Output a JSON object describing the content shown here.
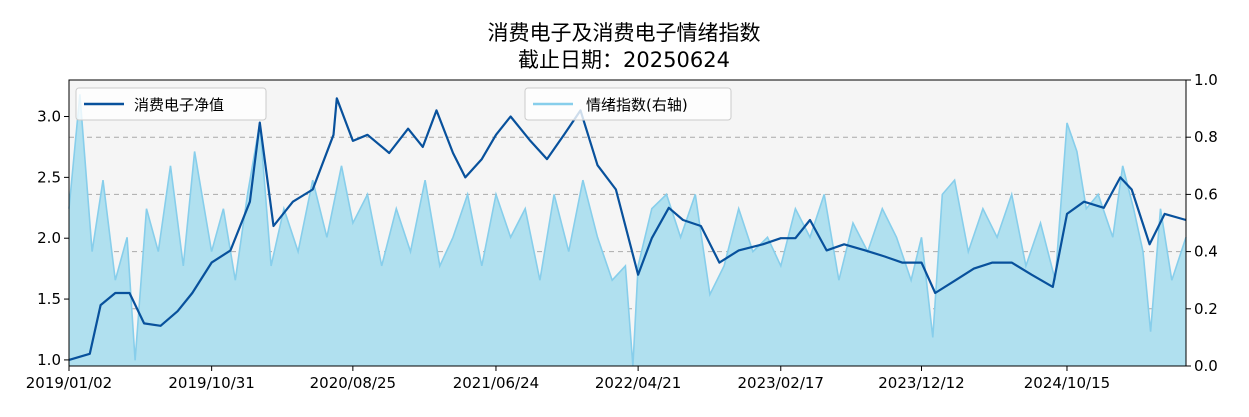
{
  "chart_data": {
    "type": "line",
    "title": "消费电子及消费电子情绪指数",
    "subtitle": "截止日期：20250624",
    "x_tick_labels": [
      "2019/01/02",
      "2019/10/31",
      "2020/08/25",
      "2021/06/24",
      "2022/04/21",
      "2023/02/17",
      "2023/12/12",
      "2024/10/15"
    ],
    "xlabel": "",
    "ylabel_left": "",
    "ylabel_right": "",
    "ylim_left": [
      0.95,
      3.3
    ],
    "ylim_right": [
      0.0,
      1.0
    ],
    "yticks_left": [
      "1.0",
      "1.5",
      "2.0",
      "2.5",
      "3.0"
    ],
    "yticks_right": [
      "0.0",
      "0.2",
      "0.4",
      "0.6",
      "0.8",
      "1.0"
    ],
    "grid": "horizontal dashed at right-axis ticks",
    "legend_left_placement": "top-left",
    "legend_right_placement": "top-center",
    "series": [
      {
        "name": "消费电子净值",
        "axis": "left",
        "color": "#08519c",
        "points": [
          [
            "2019/01/02",
            1.0
          ],
          [
            "2019/02/15",
            1.05
          ],
          [
            "2019/03/10",
            1.45
          ],
          [
            "2019/04/10",
            1.55
          ],
          [
            "2019/05/10",
            1.55
          ],
          [
            "2019/06/10",
            1.3
          ],
          [
            "2019/07/15",
            1.28
          ],
          [
            "2019/08/20",
            1.4
          ],
          [
            "2019/09/20",
            1.55
          ],
          [
            "2019/10/31",
            1.8
          ],
          [
            "2019/12/10",
            1.9
          ],
          [
            "2020/01/20",
            2.3
          ],
          [
            "2020/02/10",
            2.95
          ],
          [
            "2020/03/10",
            2.1
          ],
          [
            "2020/04/20",
            2.3
          ],
          [
            "2020/06/01",
            2.4
          ],
          [
            "2020/07/15",
            2.85
          ],
          [
            "2020/07/22",
            3.15
          ],
          [
            "2020/08/25",
            2.8
          ],
          [
            "2020/09/25",
            2.85
          ],
          [
            "2020/11/10",
            2.7
          ],
          [
            "2020/12/20",
            2.9
          ],
          [
            "2021/01/20",
            2.75
          ],
          [
            "2021/02/18",
            3.05
          ],
          [
            "2021/03/25",
            2.7
          ],
          [
            "2021/04/20",
            2.5
          ],
          [
            "2021/05/25",
            2.65
          ],
          [
            "2021/06/24",
            2.85
          ],
          [
            "2021/07/25",
            3.0
          ],
          [
            "2021/09/05",
            2.8
          ],
          [
            "2021/10/10",
            2.65
          ],
          [
            "2021/11/15",
            2.85
          ],
          [
            "2021/12/20",
            3.05
          ],
          [
            "2022/01/25",
            2.6
          ],
          [
            "2022/03/05",
            2.4
          ],
          [
            "2022/04/21",
            1.7
          ],
          [
            "2022/05/20",
            2.0
          ],
          [
            "2022/06/25",
            2.25
          ],
          [
            "2022/07/25",
            2.15
          ],
          [
            "2022/09/01",
            2.1
          ],
          [
            "2022/10/10",
            1.8
          ],
          [
            "2022/11/20",
            1.9
          ],
          [
            "2023/01/10",
            1.95
          ],
          [
            "2023/02/17",
            2.0
          ],
          [
            "2023/03/20",
            2.0
          ],
          [
            "2023/04/20",
            2.15
          ],
          [
            "2023/05/25",
            1.9
          ],
          [
            "2023/07/01",
            1.95
          ],
          [
            "2023/08/15",
            1.9
          ],
          [
            "2023/09/25",
            1.85
          ],
          [
            "2023/11/01",
            1.8
          ],
          [
            "2023/12/12",
            1.8
          ],
          [
            "2024/01/10",
            1.55
          ],
          [
            "2024/02/20",
            1.65
          ],
          [
            "2024/04/01",
            1.75
          ],
          [
            "2024/05/10",
            1.8
          ],
          [
            "2024/06/20",
            1.8
          ],
          [
            "2024/08/01",
            1.7
          ],
          [
            "2024/09/15",
            1.6
          ],
          [
            "2024/10/15",
            2.2
          ],
          [
            "2024/11/20",
            2.3
          ],
          [
            "2025/01/01",
            2.25
          ],
          [
            "2025/02/05",
            2.5
          ],
          [
            "2025/03/01",
            2.4
          ],
          [
            "2025/04/08",
            1.95
          ],
          [
            "2025/05/10",
            2.2
          ],
          [
            "2025/06/24",
            2.15
          ]
        ]
      },
      {
        "name": "情绪指数(右轴)",
        "axis": "right",
        "color": "#87ceeb",
        "fill": "#b0e0ef",
        "points": [
          [
            "2019/01/02",
            0.55
          ],
          [
            "2019/01/25",
            0.95
          ],
          [
            "2019/02/20",
            0.4
          ],
          [
            "2019/03/15",
            0.65
          ],
          [
            "2019/04/10",
            0.3
          ],
          [
            "2019/05/05",
            0.45
          ],
          [
            "2019/05/22",
            0.02
          ],
          [
            "2019/06/15",
            0.55
          ],
          [
            "2019/07/10",
            0.4
          ],
          [
            "2019/08/05",
            0.7
          ],
          [
            "2019/09/01",
            0.35
          ],
          [
            "2019/09/25",
            0.75
          ],
          [
            "2019/10/31",
            0.4
          ],
          [
            "2019/11/25",
            0.55
          ],
          [
            "2019/12/20",
            0.3
          ],
          [
            "2020/01/15",
            0.6
          ],
          [
            "2020/02/10",
            0.85
          ],
          [
            "2020/03/05",
            0.35
          ],
          [
            "2020/04/01",
            0.55
          ],
          [
            "2020/05/01",
            0.4
          ],
          [
            "2020/06/01",
            0.65
          ],
          [
            "2020/07/01",
            0.45
          ],
          [
            "2020/08/01",
            0.7
          ],
          [
            "2020/08/25",
            0.5
          ],
          [
            "2020/09/25",
            0.6
          ],
          [
            "2020/10/25",
            0.35
          ],
          [
            "2020/11/25",
            0.55
          ],
          [
            "2020/12/25",
            0.4
          ],
          [
            "2021/01/25",
            0.65
          ],
          [
            "2021/02/25",
            0.35
          ],
          [
            "2021/03/25",
            0.45
          ],
          [
            "2021/04/25",
            0.6
          ],
          [
            "2021/05/25",
            0.35
          ],
          [
            "2021/06/24",
            0.6
          ],
          [
            "2021/07/25",
            0.45
          ],
          [
            "2021/08/25",
            0.55
          ],
          [
            "2021/09/25",
            0.3
          ],
          [
            "2021/10/25",
            0.6
          ],
          [
            "2021/11/25",
            0.4
          ],
          [
            "2021/12/25",
            0.65
          ],
          [
            "2022/01/25",
            0.45
          ],
          [
            "2022/02/25",
            0.3
          ],
          [
            "2022/03/25",
            0.35
          ],
          [
            "2022/04/10",
            0.0
          ],
          [
            "2022/04/21",
            0.35
          ],
          [
            "2022/05/20",
            0.55
          ],
          [
            "2022/06/20",
            0.6
          ],
          [
            "2022/07/20",
            0.45
          ],
          [
            "2022/08/20",
            0.6
          ],
          [
            "2022/09/20",
            0.25
          ],
          [
            "2022/10/20",
            0.35
          ],
          [
            "2022/11/20",
            0.55
          ],
          [
            "2022/12/20",
            0.4
          ],
          [
            "2023/01/20",
            0.45
          ],
          [
            "2023/02/17",
            0.35
          ],
          [
            "2023/03/20",
            0.55
          ],
          [
            "2023/04/20",
            0.45
          ],
          [
            "2023/05/20",
            0.6
          ],
          [
            "2023/06/20",
            0.3
          ],
          [
            "2023/07/20",
            0.5
          ],
          [
            "2023/08/20",
            0.4
          ],
          [
            "2023/09/20",
            0.55
          ],
          [
            "2023/10/20",
            0.45
          ],
          [
            "2023/11/20",
            0.3
          ],
          [
            "2023/12/12",
            0.45
          ],
          [
            "2024/01/05",
            0.1
          ],
          [
            "2024/01/25",
            0.6
          ],
          [
            "2024/02/20",
            0.65
          ],
          [
            "2024/03/20",
            0.4
          ],
          [
            "2024/04/20",
            0.55
          ],
          [
            "2024/05/20",
            0.45
          ],
          [
            "2024/06/20",
            0.6
          ],
          [
            "2024/07/20",
            0.35
          ],
          [
            "2024/08/20",
            0.5
          ],
          [
            "2024/09/20",
            0.3
          ],
          [
            "2024/10/15",
            0.85
          ],
          [
            "2024/11/05",
            0.75
          ],
          [
            "2024/11/25",
            0.55
          ],
          [
            "2024/12/20",
            0.6
          ],
          [
            "2025/01/20",
            0.45
          ],
          [
            "2025/02/10",
            0.7
          ],
          [
            "2025/03/05",
            0.55
          ],
          [
            "2025/03/25",
            0.4
          ],
          [
            "2025/04/10",
            0.12
          ],
          [
            "2025/05/01",
            0.55
          ],
          [
            "2025/05/25",
            0.3
          ],
          [
            "2025/06/24",
            0.45
          ]
        ]
      }
    ]
  }
}
